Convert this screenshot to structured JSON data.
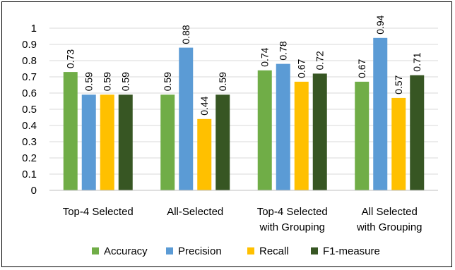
{
  "chart_data": {
    "type": "bar",
    "title": "",
    "xlabel": "",
    "ylabel": "",
    "ylim": [
      0,
      1
    ],
    "y_ticks": [
      "0",
      "0.1",
      "0.2",
      "0.3",
      "0.4",
      "0.5",
      "0.6",
      "0.7",
      "0.8",
      "0.9",
      "1"
    ],
    "grid": true,
    "legend_position": "bottom",
    "categories": [
      [
        "Top-4 Selected"
      ],
      [
        "All-Selected"
      ],
      [
        "Top-4 Selected",
        "with Grouping"
      ],
      [
        "All Selected",
        "with Grouping"
      ]
    ],
    "series": [
      {
        "name": "Accuracy",
        "color": "#70ad47",
        "values": [
          0.73,
          0.59,
          0.74,
          0.67
        ],
        "labels": [
          "0.73",
          "0.59",
          "0.74",
          "0.67"
        ]
      },
      {
        "name": "Precision",
        "color": "#5b9bd5",
        "values": [
          0.59,
          0.88,
          0.78,
          0.94
        ],
        "labels": [
          "0.59",
          "0.88",
          "0.78",
          "0.94"
        ]
      },
      {
        "name": "Recall",
        "color": "#ffc000",
        "values": [
          0.59,
          0.44,
          0.67,
          0.57
        ],
        "labels": [
          "0.59",
          "0.44",
          "0.67",
          "0.57"
        ]
      },
      {
        "name": "F1-measure",
        "color": "#375623",
        "values": [
          0.59,
          0.59,
          0.72,
          0.71
        ],
        "labels": [
          "0.59",
          "0.59",
          "0.72",
          "0.71"
        ]
      }
    ]
  }
}
